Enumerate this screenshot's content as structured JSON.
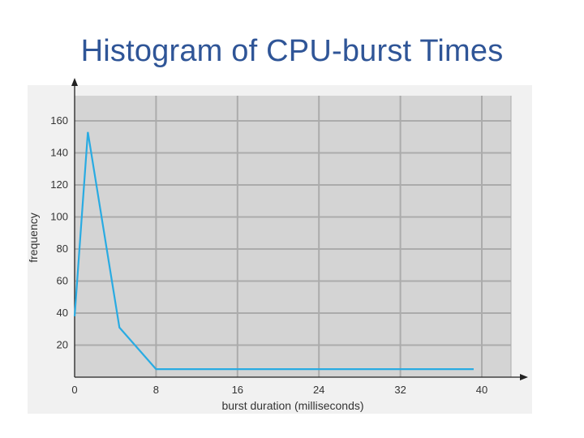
{
  "slide": {
    "title": "Histogram of CPU-burst Times"
  },
  "chart_data": {
    "type": "line",
    "title": "",
    "xlabel": "burst duration (milliseconds)",
    "ylabel": "frequency",
    "xlim": [
      0,
      40
    ],
    "ylim": [
      0,
      160
    ],
    "x_ticks": [
      0,
      8,
      16,
      24,
      32,
      40
    ],
    "y_ticks": [
      20,
      40,
      60,
      80,
      100,
      120,
      140,
      160
    ],
    "grid": true,
    "legend": "none",
    "colors": {
      "plot_background": "#d4d4d4",
      "grid": "#ababab",
      "line": "#29abe2",
      "axis": "#222222",
      "title": "#2f5597"
    },
    "series": [
      {
        "x": [
          0,
          1.3,
          4.4,
          8,
          39.2
        ],
        "y": [
          38,
          153,
          31,
          5,
          5
        ]
      }
    ]
  }
}
